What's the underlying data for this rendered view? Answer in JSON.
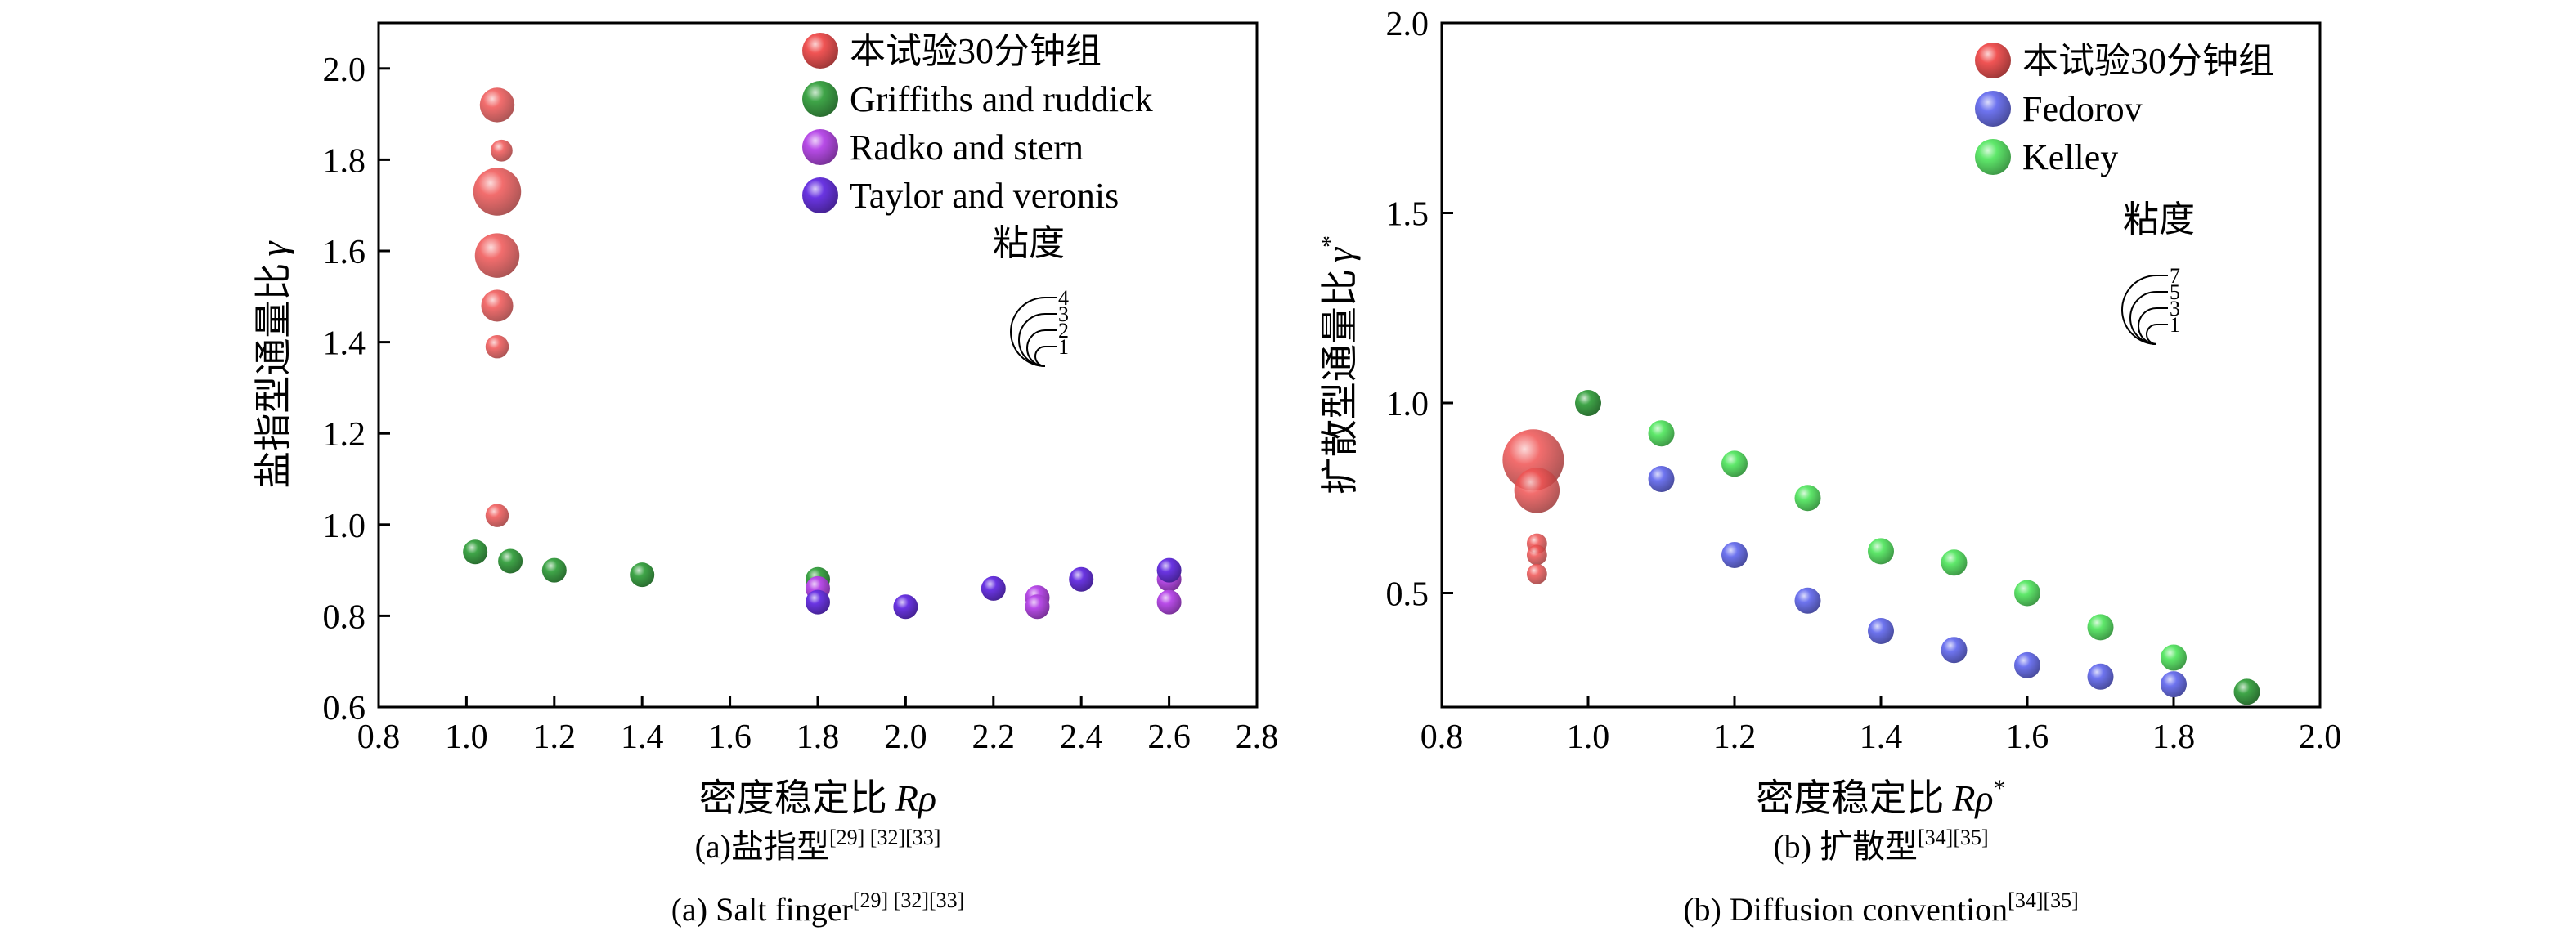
{
  "colors": {
    "red": "#f05454",
    "green": "#3fa548",
    "purple": "#b84ce8",
    "violet": "#6a35e2",
    "blue": "#6e74ef",
    "lightgreen": "#5fe86b"
  },
  "chart_data": [
    {
      "type": "scatter",
      "xlabel_main": "密度稳定比",
      "xlabel_symbol": "Rρ",
      "ylabel_main": "盐指型通量比",
      "ylabel_symbol": "γ",
      "xlim": [
        0.8,
        2.8
      ],
      "ylim": [
        0.6,
        2.1
      ],
      "xticks": [
        "0.8",
        "1.0",
        "1.2",
        "1.4",
        "1.6",
        "1.8",
        "2.0",
        "2.2",
        "2.4",
        "2.6",
        "2.8"
      ],
      "yticks": [
        "0.6",
        "0.8",
        "1.0",
        "1.2",
        "1.4",
        "1.6",
        "1.8",
        "2.0"
      ],
      "caption_cn_main": "(a)盐指型",
      "caption_cn_ref": "[29] [32][33]",
      "caption_en_main": "(a) Salt finger",
      "caption_en_ref": "[29] [32][33]",
      "size_legend_title": "粘度",
      "size_legend_values": [
        "4",
        "3",
        "2",
        "1"
      ],
      "series": [
        {
          "name": "本试验30分钟组",
          "color": "red",
          "points": [
            {
              "x": 1.07,
              "y": 1.92,
              "s": 2.0
            },
            {
              "x": 1.08,
              "y": 1.82,
              "s": 0.8
            },
            {
              "x": 1.07,
              "y": 1.73,
              "s": 3.8
            },
            {
              "x": 1.07,
              "y": 1.59,
              "s": 3.3
            },
            {
              "x": 1.07,
              "y": 1.48,
              "s": 1.7
            },
            {
              "x": 1.07,
              "y": 1.39,
              "s": 0.9
            },
            {
              "x": 1.07,
              "y": 1.02,
              "s": 0.9
            }
          ]
        },
        {
          "name": "Griffiths and ruddick",
          "color": "green",
          "points": [
            {
              "x": 1.02,
              "y": 0.94,
              "s": 1
            },
            {
              "x": 1.1,
              "y": 0.92,
              "s": 1
            },
            {
              "x": 1.2,
              "y": 0.9,
              "s": 1
            },
            {
              "x": 1.4,
              "y": 0.89,
              "s": 1
            },
            {
              "x": 1.8,
              "y": 0.88,
              "s": 1
            }
          ]
        },
        {
          "name": "Radko and stern",
          "color": "purple",
          "points": [
            {
              "x": 1.8,
              "y": 0.86,
              "s": 1
            },
            {
              "x": 2.3,
              "y": 0.84,
              "s": 1
            },
            {
              "x": 2.3,
              "y": 0.82,
              "s": 1
            },
            {
              "x": 2.6,
              "y": 0.88,
              "s": 1
            },
            {
              "x": 2.6,
              "y": 0.83,
              "s": 1
            }
          ]
        },
        {
          "name": "Taylor and veronis",
          "color": "violet",
          "points": [
            {
              "x": 1.8,
              "y": 0.83,
              "s": 1
            },
            {
              "x": 2.0,
              "y": 0.82,
              "s": 1
            },
            {
              "x": 2.2,
              "y": 0.86,
              "s": 1
            },
            {
              "x": 2.4,
              "y": 0.88,
              "s": 1
            },
            {
              "x": 2.6,
              "y": 0.9,
              "s": 1
            }
          ]
        }
      ]
    },
    {
      "type": "scatter",
      "xlabel_main": "密度稳定比",
      "xlabel_symbol": "Rρ",
      "xlabel_sup": "*",
      "ylabel_main": "扩散型通量比",
      "ylabel_symbol": "γ",
      "ylabel_sup": "*",
      "xlim": [
        0.8,
        2.0
      ],
      "ylim": [
        0.2,
        2.0
      ],
      "xticks": [
        "0.8",
        "1.0",
        "1.2",
        "1.4",
        "1.6",
        "1.8",
        "2.0"
      ],
      "yticks": [
        "0.5",
        "1.0",
        "1.5",
        "2.0"
      ],
      "caption_cn_main": "(b) 扩散型",
      "caption_cn_ref": "[34][35]",
      "caption_en_main": "(b) Diffusion convention",
      "caption_en_ref": "[34][35]",
      "size_legend_title": "粘度",
      "size_legend_values": [
        "7",
        "5",
        "3",
        "1"
      ],
      "series": [
        {
          "name": "本试验30分钟组",
          "color": "red",
          "points": [
            {
              "x": 0.925,
              "y": 0.85,
              "s": 5.5
            },
            {
              "x": 0.93,
              "y": 0.77,
              "s": 3.0
            },
            {
              "x": 0.93,
              "y": 0.63,
              "s": 0.6
            },
            {
              "x": 0.93,
              "y": 0.6,
              "s": 0.6
            },
            {
              "x": 0.93,
              "y": 0.55,
              "s": 0.6
            }
          ]
        },
        {
          "name": "Fedorov",
          "color": "blue",
          "points": [
            {
              "x": 1.1,
              "y": 0.8,
              "s": 1
            },
            {
              "x": 1.2,
              "y": 0.6,
              "s": 1
            },
            {
              "x": 1.3,
              "y": 0.48,
              "s": 1
            },
            {
              "x": 1.4,
              "y": 0.4,
              "s": 1
            },
            {
              "x": 1.5,
              "y": 0.35,
              "s": 1
            },
            {
              "x": 1.6,
              "y": 0.31,
              "s": 1
            },
            {
              "x": 1.7,
              "y": 0.28,
              "s": 1
            },
            {
              "x": 1.8,
              "y": 0.26,
              "s": 1
            }
          ]
        },
        {
          "name": "Kelley",
          "color": "lightgreen",
          "points": [
            {
              "x": 1.1,
              "y": 0.92,
              "s": 1
            },
            {
              "x": 1.2,
              "y": 0.84,
              "s": 1
            },
            {
              "x": 1.3,
              "y": 0.75,
              "s": 1
            },
            {
              "x": 1.4,
              "y": 0.61,
              "s": 1
            },
            {
              "x": 1.5,
              "y": 0.58,
              "s": 1
            },
            {
              "x": 1.6,
              "y": 0.5,
              "s": 1
            },
            {
              "x": 1.7,
              "y": 0.41,
              "s": 1
            },
            {
              "x": 1.8,
              "y": 0.33,
              "s": 1
            }
          ]
        },
        {
          "name": "",
          "color": "green",
          "points": [
            {
              "x": 1.0,
              "y": 1.0,
              "s": 1
            },
            {
              "x": 1.9,
              "y": 0.24,
              "s": 1
            }
          ]
        }
      ]
    }
  ]
}
